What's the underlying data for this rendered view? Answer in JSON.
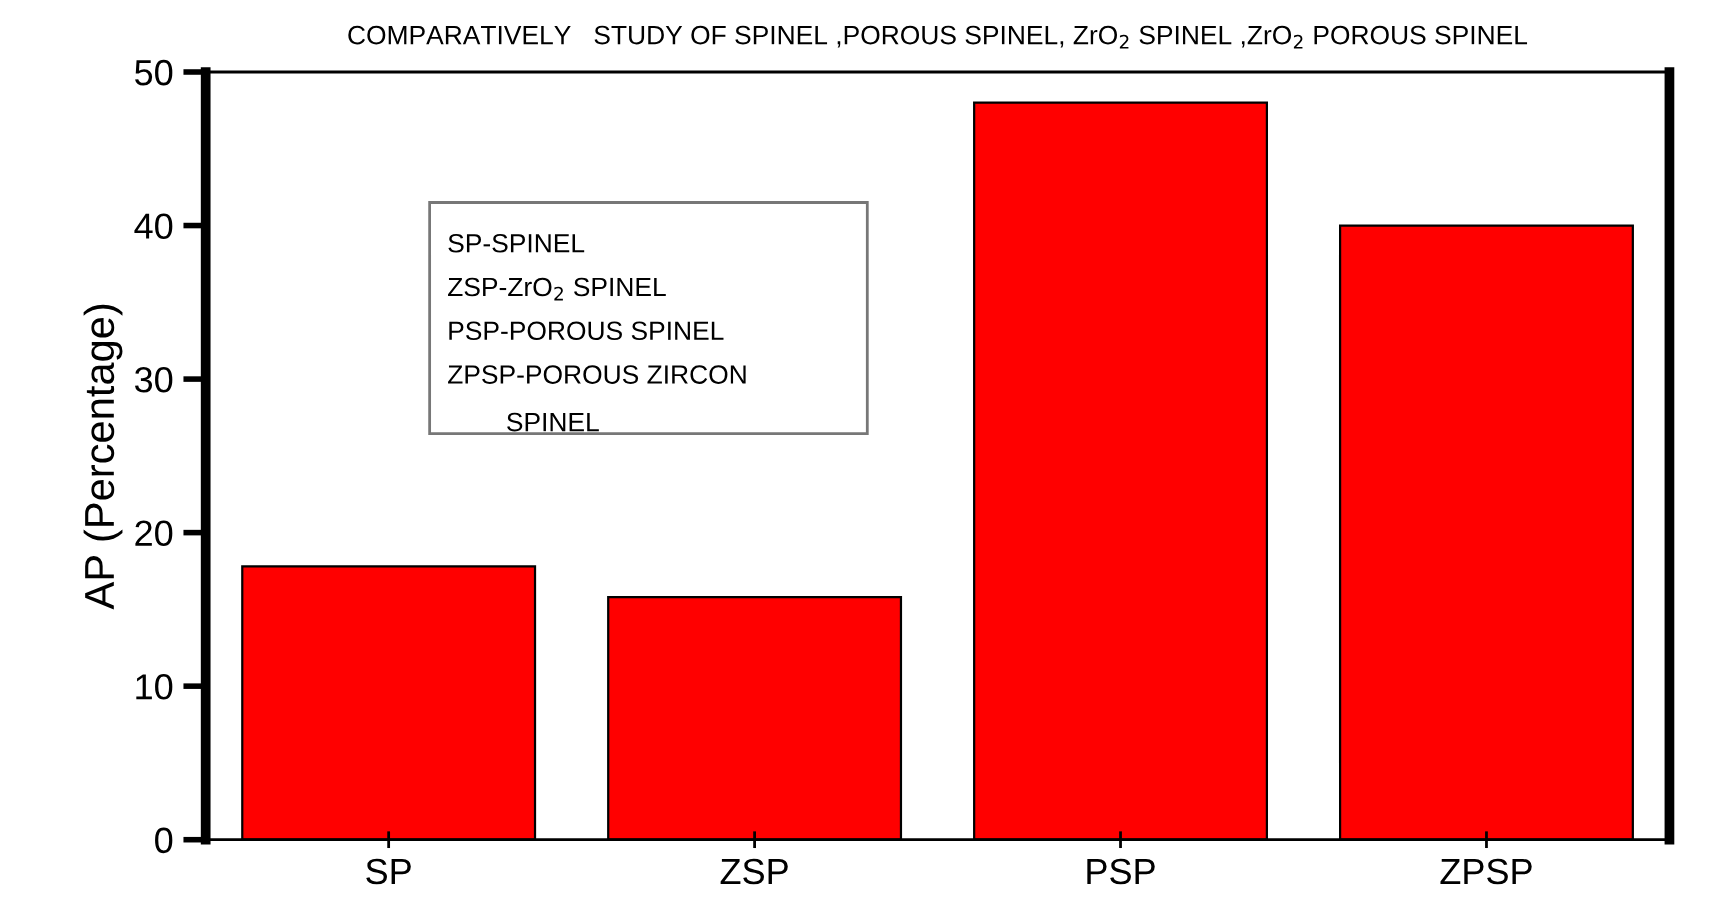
{
  "chart_data": {
    "type": "bar",
    "title": "COMPARATIVELY   STUDY OF SPINEL ,POROUS SPINEL, ZrO$_{2}$ SPINEL ,ZrO$_{2}$ POROUS SPINEL",
    "ylabel": "AP (Percentage)",
    "categories": [
      "SP",
      "ZSP",
      "PSP",
      "ZPSP"
    ],
    "values": [
      17.8,
      15.8,
      48,
      40
    ],
    "color": "#ff0000",
    "ylim": [
      0,
      50
    ],
    "yticks": [
      0,
      10,
      20,
      30,
      40,
      50
    ],
    "annotations": [
      "SP-SPINEL",
      "ZSP-ZrO$_{2}$ SPINEL",
      "PSP-POROUS SPINEL",
      "ZPSP-POROUS ZIRCON\n        SPINEL"
    ],
    "grid": false,
    "legend": false
  }
}
